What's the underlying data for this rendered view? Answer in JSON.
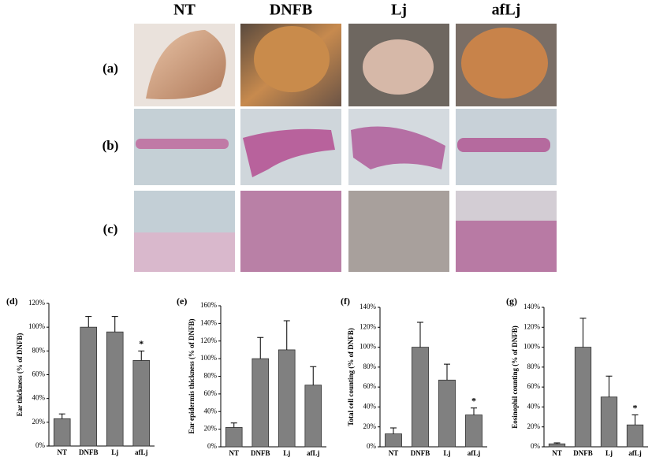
{
  "photo_panel": {
    "columns": [
      "NT",
      "DNFB",
      "Lj",
      "afLj"
    ],
    "rows": [
      "(a)",
      "(b)",
      "(c)"
    ]
  },
  "chart_data": [
    {
      "type": "bar",
      "panel": "(d)",
      "y_label": "Ear thickness (% of DNFB)",
      "categories": [
        "NT",
        "DNFB",
        "Lj",
        "afLj"
      ],
      "values": [
        23,
        100,
        96,
        72
      ],
      "errors": [
        4,
        9,
        13,
        8
      ],
      "significance": [
        null,
        null,
        null,
        "*"
      ],
      "color": "#808080",
      "ylim": [
        0,
        120
      ],
      "yticks": [
        {
          "value": 0,
          "label": "0%"
        },
        {
          "value": 20,
          "label": "20%"
        },
        {
          "value": 40,
          "label": "40%"
        },
        {
          "value": 60,
          "label": "60%"
        },
        {
          "value": 80,
          "label": "80%"
        },
        {
          "value": 100,
          "label": "100%"
        },
        {
          "value": 120,
          "label": "120%"
        }
      ]
    },
    {
      "type": "bar",
      "panel": "(e)",
      "y_label": "Ear epidermis thickness (% of DNFB)",
      "categories": [
        "NT",
        "DNFB",
        "Lj",
        "afLj"
      ],
      "values": [
        22,
        100,
        110,
        70
      ],
      "errors": [
        5,
        24,
        33,
        21
      ],
      "significance": [
        null,
        null,
        null,
        null
      ],
      "color": "#808080",
      "ylim": [
        0,
        160
      ],
      "yticks": [
        {
          "value": 0,
          "label": "0%"
        },
        {
          "value": 20,
          "label": "20%"
        },
        {
          "value": 40,
          "label": "40%"
        },
        {
          "value": 60,
          "label": "60%"
        },
        {
          "value": 80,
          "label": "80%"
        },
        {
          "value": 100,
          "label": "100%"
        },
        {
          "value": 120,
          "label": "120%"
        },
        {
          "value": 140,
          "label": "140%"
        },
        {
          "value": 160,
          "label": "160%"
        }
      ]
    },
    {
      "type": "bar",
      "panel": "(f)",
      "y_label": "Total cell counting (% of DNFB)",
      "categories": [
        "NT",
        "DNFB",
        "Lj",
        "afLj"
      ],
      "values": [
        13,
        100,
        67,
        32
      ],
      "errors": [
        6,
        25,
        16,
        7
      ],
      "significance": [
        null,
        null,
        null,
        "*"
      ],
      "color": "#808080",
      "ylim": [
        0,
        140
      ],
      "yticks": [
        {
          "value": 0,
          "label": "0%"
        },
        {
          "value": 20,
          "label": "20%"
        },
        {
          "value": 40,
          "label": "40%"
        },
        {
          "value": 60,
          "label": "60%"
        },
        {
          "value": 80,
          "label": "80%"
        },
        {
          "value": 100,
          "label": "100%"
        },
        {
          "value": 120,
          "label": "120%"
        },
        {
          "value": 140,
          "label": "140%"
        }
      ]
    },
    {
      "type": "bar",
      "panel": "(g)",
      "y_label": "Eosinophil counting (% of DNFB)",
      "categories": [
        "NT",
        "DNFB",
        "Lj",
        "afLj"
      ],
      "values": [
        3,
        100,
        50,
        22
      ],
      "errors": [
        1,
        29,
        21,
        10
      ],
      "significance": [
        null,
        null,
        null,
        "*"
      ],
      "color": "#808080",
      "ylim": [
        0,
        140
      ],
      "yticks": [
        {
          "value": 0,
          "label": "0%"
        },
        {
          "value": 20,
          "label": "20%"
        },
        {
          "value": 40,
          "label": "40%"
        },
        {
          "value": 60,
          "label": "60%"
        },
        {
          "value": 80,
          "label": "80%"
        },
        {
          "value": 100,
          "label": "100%"
        },
        {
          "value": 120,
          "label": "120%"
        },
        {
          "value": 140,
          "label": "140%"
        }
      ]
    }
  ]
}
